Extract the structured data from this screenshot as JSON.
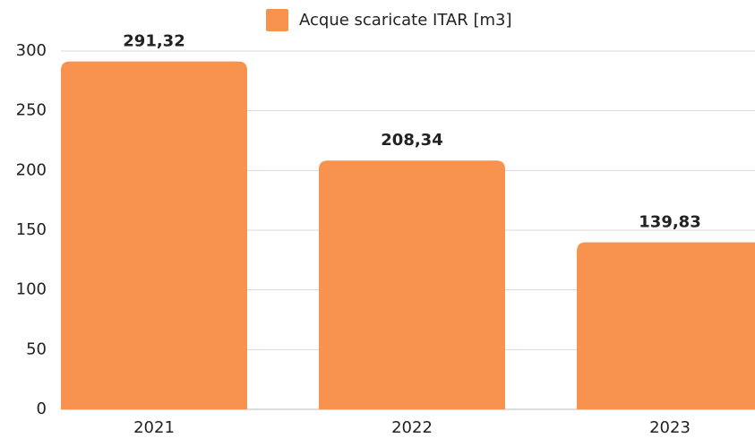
{
  "chart_data": {
    "type": "bar",
    "legend": "Acque scaricate ITAR [m3]",
    "categories": [
      "2021",
      "2022",
      "2023"
    ],
    "values": [
      291.32,
      208.34,
      139.83
    ],
    "value_labels": [
      "291,32",
      "208,34",
      "139,83"
    ],
    "color": "#f7934e",
    "ylim": [
      0,
      300
    ],
    "yticks": [
      0,
      50,
      100,
      150,
      200,
      250,
      300
    ],
    "grid": true
  }
}
